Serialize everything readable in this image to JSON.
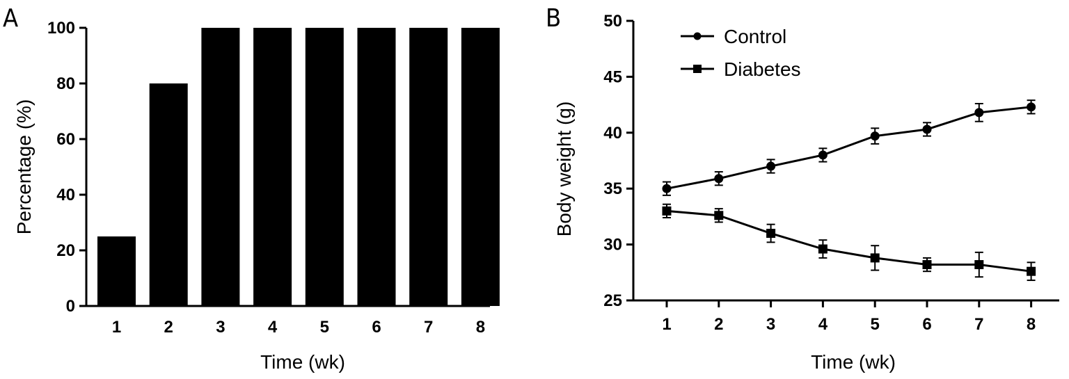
{
  "chart_data": [
    {
      "panel_label": "A",
      "type": "bar",
      "categories": [
        "1",
        "2",
        "3",
        "4",
        "5",
        "6",
        "7",
        "8"
      ],
      "values": [
        25,
        80,
        100,
        100,
        100,
        100,
        100,
        100
      ],
      "xlabel": "Time (wk)",
      "ylabel": "Percentage (%)",
      "ylim": [
        0,
        100
      ],
      "yticks": [
        "0",
        "20",
        "40",
        "60",
        "80",
        "100"
      ],
      "bar_color": "#000000",
      "grid": false
    },
    {
      "panel_label": "B",
      "type": "line",
      "x": [
        "1",
        "2",
        "3",
        "4",
        "5",
        "6",
        "7",
        "8"
      ],
      "series": [
        {
          "name": "Control",
          "marker": "circle",
          "values": [
            35.0,
            35.9,
            37.0,
            38.0,
            39.7,
            40.3,
            41.8,
            42.3
          ],
          "errors": [
            0.6,
            0.6,
            0.6,
            0.6,
            0.7,
            0.6,
            0.8,
            0.6
          ]
        },
        {
          "name": "Diabetes",
          "marker": "square",
          "values": [
            33.0,
            32.6,
            31.0,
            29.6,
            28.8,
            28.2,
            28.2,
            27.6
          ],
          "errors": [
            0.6,
            0.6,
            0.8,
            0.8,
            1.1,
            0.6,
            1.1,
            0.8
          ]
        }
      ],
      "xlabel": "Time (wk)",
      "ylabel": "Body weight (g)",
      "ylim": [
        25,
        50
      ],
      "yticks": [
        "25",
        "30",
        "35",
        "40",
        "45",
        "50"
      ],
      "legend_position": "top-left",
      "line_color": "#000000",
      "grid": false
    }
  ]
}
